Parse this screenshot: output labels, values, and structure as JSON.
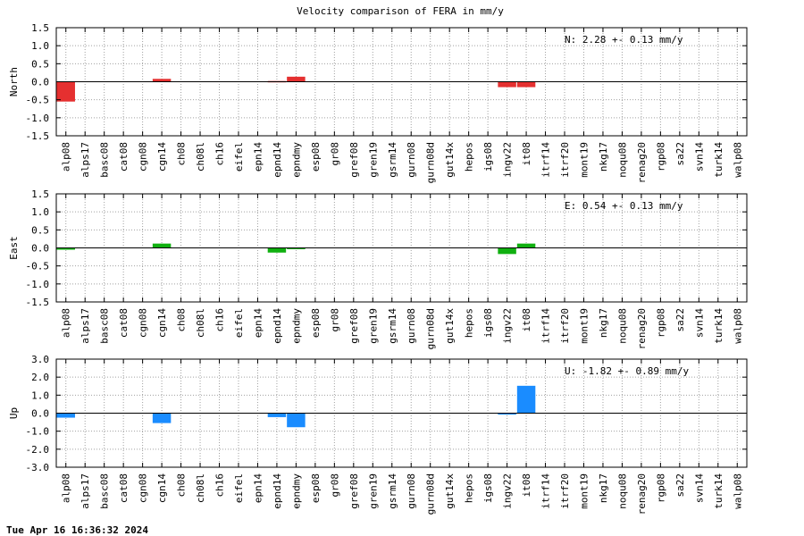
{
  "title": "Velocity comparison of FERA in mm/y",
  "footer": "Tue Apr 16 16:36:32 2024",
  "chart_data": [
    {
      "type": "bar",
      "ylabel": "North",
      "ylim": [
        -1.5,
        1.5
      ],
      "yticks": [
        "1.5",
        "1.0",
        "0.5",
        "0.0",
        "-0.5",
        "-1.0",
        "-1.5"
      ],
      "annotation": "N:   2.28 +-  0.13 mm/y",
      "color": "#e53030",
      "grid": true,
      "categories": [
        "alp08",
        "alps17",
        "basc08",
        "cat08",
        "cgn08",
        "cgn14",
        "ch08",
        "ch08l",
        "ch16",
        "eifel",
        "epn14",
        "epnd14",
        "epndmy",
        "esp08",
        "gr08",
        "gref08",
        "gren19",
        "gsrm14",
        "gurn08",
        "gurn08d",
        "gut14x",
        "hepos",
        "igs08",
        "ingv22",
        "it08",
        "itrf14",
        "itrf20",
        "mont19",
        "nkg17",
        "noqu08",
        "renag20",
        "rgp08",
        "sa22",
        "svn14",
        "turk14",
        "walp08"
      ],
      "values": [
        -0.55,
        0,
        0,
        0,
        0,
        0.08,
        0,
        0,
        0,
        0,
        0,
        0.02,
        0.14,
        0,
        0,
        0,
        0,
        0,
        0,
        0,
        0,
        0,
        0,
        -0.15,
        -0.15,
        0,
        0,
        0,
        0,
        0,
        0,
        0,
        0,
        0,
        0,
        0
      ]
    },
    {
      "type": "bar",
      "ylabel": "East",
      "ylim": [
        -1.5,
        1.5
      ],
      "yticks": [
        "1.5",
        "1.0",
        "0.5",
        "0.0",
        "-0.5",
        "-1.0",
        "-1.5"
      ],
      "annotation": "E:   0.54 +-  0.13 mm/y",
      "color": "#10b010",
      "grid": true,
      "categories": [
        "alp08",
        "alps17",
        "basc08",
        "cat08",
        "cgn08",
        "cgn14",
        "ch08",
        "ch08l",
        "ch16",
        "eifel",
        "epn14",
        "epnd14",
        "epndmy",
        "esp08",
        "gr08",
        "gref08",
        "gren19",
        "gsrm14",
        "gurn08",
        "gurn08d",
        "gut14x",
        "hepos",
        "igs08",
        "ingv22",
        "it08",
        "itrf14",
        "itrf20",
        "mont19",
        "nkg17",
        "noqu08",
        "renag20",
        "rgp08",
        "sa22",
        "svn14",
        "turk14",
        "walp08"
      ],
      "values": [
        -0.05,
        0,
        0,
        0,
        0,
        0.12,
        0,
        0,
        0,
        0,
        0,
        -0.13,
        -0.03,
        0,
        0,
        0,
        0,
        0,
        0,
        0,
        0,
        0,
        0,
        -0.17,
        0.12,
        0,
        0,
        0,
        0,
        0,
        0,
        0,
        0,
        0,
        0,
        0
      ]
    },
    {
      "type": "bar",
      "ylabel": "Up",
      "ylim": [
        -3.0,
        3.0
      ],
      "yticks": [
        "3.0",
        "2.0",
        "1.0",
        "0.0",
        "-1.0",
        "-2.0",
        "-3.0"
      ],
      "annotation": "U:  -1.82 +-  0.89 mm/y",
      "color": "#1a8cff",
      "grid": true,
      "categories": [
        "alp08",
        "alps17",
        "basc08",
        "cat08",
        "cgn08",
        "cgn14",
        "ch08",
        "ch08l",
        "ch16",
        "eifel",
        "epn14",
        "epnd14",
        "epndmy",
        "esp08",
        "gr08",
        "gref08",
        "gren19",
        "gsrm14",
        "gurn08",
        "gurn08d",
        "gut14x",
        "hepos",
        "igs08",
        "ingv22",
        "it08",
        "itrf14",
        "itrf20",
        "mont19",
        "nkg17",
        "noqu08",
        "renag20",
        "rgp08",
        "sa22",
        "svn14",
        "turk14",
        "walp08"
      ],
      "values": [
        -0.25,
        0,
        0,
        0,
        0,
        -0.55,
        0,
        0,
        0,
        0,
        0,
        -0.22,
        -0.78,
        0,
        0,
        0,
        0,
        0,
        0,
        0,
        0,
        0,
        0,
        -0.08,
        1.52,
        0,
        0,
        0,
        0,
        0,
        0,
        0,
        0,
        0,
        0,
        0
      ]
    }
  ]
}
